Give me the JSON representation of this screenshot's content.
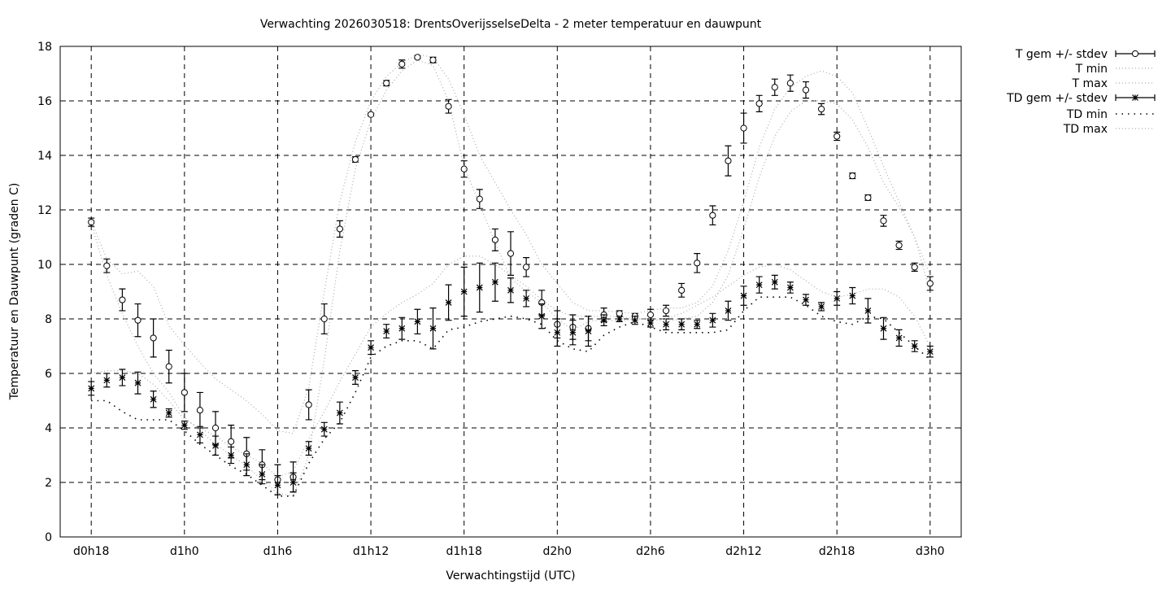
{
  "chart_data": {
    "type": "line",
    "title": "Verwachting 2026030518: DrentsOverijsselseDelta - 2 meter temperatuur en dauwpunt",
    "xlabel": "Verwachtingstijd (UTC)",
    "ylabel": "Temperatuur en Dauwpunt (graden C)",
    "xlim": [
      16,
      74
    ],
    "ylim": [
      0,
      18
    ],
    "grid": true,
    "legend_position": "outside-right",
    "x_ticks": [
      {
        "hour": 18,
        "label": "d0h18"
      },
      {
        "hour": 24,
        "label": "d1h0"
      },
      {
        "hour": 30,
        "label": "d1h6"
      },
      {
        "hour": 36,
        "label": "d1h12"
      },
      {
        "hour": 42,
        "label": "d1h18"
      },
      {
        "hour": 48,
        "label": "d2h0"
      },
      {
        "hour": 54,
        "label": "d2h6"
      },
      {
        "hour": 60,
        "label": "d2h12"
      },
      {
        "hour": 66,
        "label": "d2h18"
      },
      {
        "hour": 72,
        "label": "d3h0"
      }
    ],
    "y_ticks": [
      "0",
      "2",
      "4",
      "6",
      "8",
      "10",
      "12",
      "14",
      "16",
      "18"
    ],
    "x_start_hour": 18,
    "series": [
      {
        "name": "T gem +/- stdev",
        "style": "errorbars-circle",
        "values": [
          11.55,
          9.95,
          8.7,
          7.95,
          7.3,
          6.25,
          5.3,
          4.65,
          4.0,
          3.5,
          3.05,
          2.65,
          2.1,
          2.2,
          4.85,
          8.0,
          11.3,
          13.85,
          15.5,
          16.65,
          17.35,
          17.6,
          17.5,
          15.8,
          13.5,
          12.4,
          10.9,
          10.4,
          9.9,
          8.6,
          7.8,
          7.7,
          7.65,
          8.15,
          8.2,
          8.1,
          8.15,
          8.3,
          9.05,
          10.05,
          11.8,
          13.8,
          15.0,
          15.9,
          16.5,
          16.65,
          16.4,
          15.7,
          14.7,
          13.25,
          12.45,
          11.6,
          10.7,
          9.9,
          9.3
        ],
        "stdev": [
          0.15,
          0.25,
          0.4,
          0.6,
          0.7,
          0.6,
          0.7,
          0.65,
          0.6,
          0.6,
          0.6,
          0.55,
          0.55,
          0.55,
          0.55,
          0.55,
          0.3,
          0.1,
          0.05,
          0.1,
          0.15,
          0.05,
          0.1,
          0.25,
          0.3,
          0.35,
          0.4,
          0.8,
          0.35,
          0.45,
          0.5,
          0.45,
          0.45,
          0.25,
          0.1,
          0.1,
          0.2,
          0.2,
          0.25,
          0.35,
          0.35,
          0.55,
          0.55,
          0.3,
          0.3,
          0.3,
          0.3,
          0.2,
          0.15,
          0.1,
          0.1,
          0.2,
          0.15,
          0.15,
          0.25
        ]
      },
      {
        "name": "T min",
        "style": "dotted-light",
        "values": [
          11.5,
          9.6,
          8.2,
          7.0,
          6.0,
          5.3,
          4.4,
          3.9,
          3.4,
          3.0,
          2.6,
          2.1,
          1.6,
          1.5,
          3.0,
          6.5,
          10.5,
          13.5,
          15.3,
          16.4,
          17.1,
          17.5,
          17.3,
          16.0,
          13.6,
          12.2,
          10.8,
          9.5,
          9.0,
          8.6,
          8.0,
          7.6,
          7.9,
          8.0,
          7.9,
          8.0,
          8.0,
          7.9,
          8.0,
          8.1,
          8.6,
          9.6,
          11.3,
          13.2,
          14.7,
          15.6,
          16.0,
          16.0,
          15.9,
          15.3,
          14.3,
          13.0,
          12.1,
          11.0,
          9.0
        ]
      },
      {
        "name": "T max",
        "style": "dotted-light",
        "values": [
          11.6,
          10.2,
          9.65,
          9.75,
          9.2,
          7.75,
          7.05,
          6.4,
          5.8,
          5.4,
          5.0,
          4.5,
          3.9,
          3.8,
          5.5,
          9.0,
          12.3,
          14.5,
          16.0,
          16.9,
          17.4,
          17.7,
          17.6,
          16.8,
          15.5,
          14.0,
          13.0,
          12.0,
          11.1,
          10.0,
          9.3,
          8.6,
          8.3,
          8.3,
          8.25,
          8.2,
          8.3,
          8.4,
          8.4,
          8.6,
          9.2,
          10.5,
          12.3,
          14.3,
          15.7,
          16.5,
          16.9,
          17.1,
          16.9,
          16.3,
          15.0,
          13.6,
          12.3,
          11.0,
          9.6
        ]
      },
      {
        "name": "TD gem +/- stdev",
        "style": "errorbars-star",
        "values": [
          5.45,
          5.75,
          5.85,
          5.65,
          5.05,
          4.55,
          4.1,
          3.75,
          3.35,
          3.0,
          2.65,
          2.3,
          1.9,
          2.0,
          3.25,
          3.95,
          4.55,
          5.85,
          6.95,
          7.55,
          7.65,
          7.9,
          7.65,
          8.6,
          9.0,
          9.15,
          9.35,
          9.05,
          8.75,
          8.1,
          7.5,
          7.5,
          7.55,
          7.95,
          8.0,
          7.95,
          7.85,
          7.8,
          7.8,
          7.8,
          7.95,
          8.3,
          8.85,
          9.25,
          9.35,
          9.15,
          8.7,
          8.45,
          8.75,
          8.85,
          8.3,
          7.65,
          7.3,
          7.0,
          6.8
        ],
        "stdev": [
          0.25,
          0.25,
          0.3,
          0.4,
          0.3,
          0.15,
          0.15,
          0.3,
          0.35,
          0.3,
          0.4,
          0.35,
          0.35,
          0.35,
          0.25,
          0.25,
          0.4,
          0.25,
          0.25,
          0.25,
          0.4,
          0.45,
          0.75,
          0.65,
          0.9,
          0.9,
          0.7,
          0.45,
          0.3,
          0.45,
          0.5,
          0.45,
          0.55,
          0.2,
          0.1,
          0.15,
          0.15,
          0.2,
          0.2,
          0.15,
          0.25,
          0.35,
          0.35,
          0.3,
          0.25,
          0.2,
          0.2,
          0.15,
          0.25,
          0.3,
          0.45,
          0.4,
          0.3,
          0.2,
          0.2
        ]
      },
      {
        "name": "TD min",
        "style": "dotted-dark",
        "values": [
          5.0,
          5.0,
          4.6,
          4.3,
          4.3,
          4.3,
          3.9,
          3.4,
          3.0,
          2.6,
          2.3,
          1.9,
          1.5,
          1.5,
          2.7,
          3.6,
          4.2,
          5.3,
          6.6,
          7.0,
          7.2,
          7.2,
          6.9,
          7.6,
          7.7,
          7.9,
          8.0,
          8.1,
          8.0,
          7.8,
          7.2,
          6.9,
          6.8,
          7.4,
          7.7,
          7.9,
          7.7,
          7.5,
          7.5,
          7.5,
          7.5,
          7.6,
          8.3,
          8.8,
          8.8,
          8.8,
          8.5,
          8.1,
          7.9,
          7.8,
          8.1,
          8.0,
          7.5,
          7.0,
          6.5
        ]
      },
      {
        "name": "TD max",
        "style": "dotted-light",
        "values": [
          6.0,
          6.1,
          6.1,
          6.0,
          5.6,
          5.0,
          4.3,
          4.0,
          3.7,
          3.3,
          3.0,
          2.7,
          2.2,
          2.4,
          3.6,
          4.6,
          5.7,
          6.7,
          7.7,
          8.2,
          8.6,
          8.9,
          9.3,
          10.0,
          10.3,
          10.3,
          10.0,
          9.6,
          9.2,
          8.7,
          8.3,
          8.1,
          8.1,
          8.1,
          8.1,
          8.0,
          8.0,
          8.0,
          8.2,
          8.5,
          8.8,
          9.2,
          9.6,
          9.9,
          10.0,
          9.8,
          9.4,
          9.0,
          8.8,
          8.9,
          9.1,
          9.1,
          8.8,
          8.1,
          7.0
        ]
      }
    ],
    "colors": {
      "axis": "#000000",
      "light_dotted": "#aaaaaa",
      "dark_dotted": "#000000"
    }
  }
}
